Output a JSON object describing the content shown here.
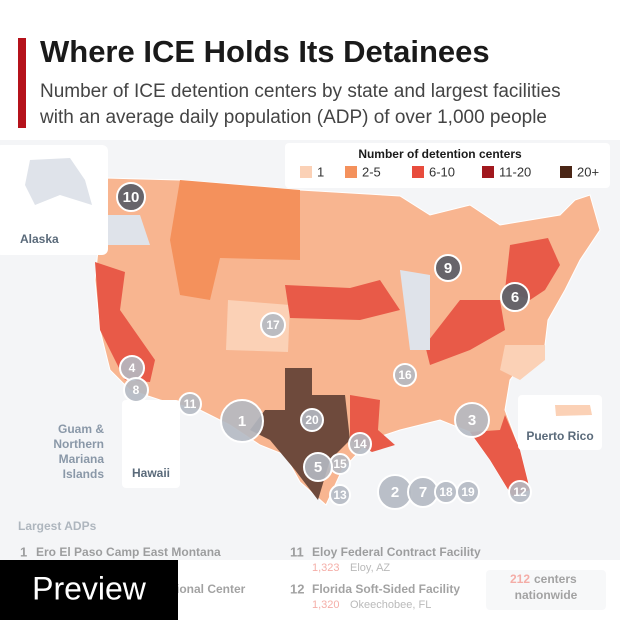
{
  "header": {
    "title": "Where ICE Holds Its Detainees",
    "subtitle_lines": [
      "Number of ICE detention centers by state and largest facilities",
      "with an average daily population (ADP) of over 1,000 people"
    ]
  },
  "legend": {
    "title": "Number of detention centers",
    "items": [
      {
        "label": "1",
        "color": "#fbd1b6"
      },
      {
        "label": "2-5",
        "color": "#f4915c"
      },
      {
        "label": "6-10",
        "color": "#e84c3d"
      },
      {
        "label": "11-20",
        "color": "#a1181e"
      },
      {
        "label": "20+",
        "color": "#4a2616"
      }
    ]
  },
  "insets": {
    "alaska": "Alaska",
    "guam": [
      "Guam &",
      "Northern",
      "Mariana",
      "Islands"
    ],
    "hawaii": "Hawaii",
    "puerto_rico": "Puerto Rico"
  },
  "markers": [
    "10",
    "9",
    "6",
    "17",
    "4",
    "8",
    "11",
    "1",
    "16",
    "20",
    "3",
    "14",
    "15",
    "5",
    "13",
    "2",
    "7",
    "18",
    "19",
    "12"
  ],
  "ranking": {
    "title": "Largest ADPs",
    "items": [
      {
        "rank": "1",
        "name": "Ero El Paso Camp East Montana"
      },
      {
        "rank": "11",
        "name": "Eloy Federal Contract Facility",
        "adp": "1,323",
        "place": "Eloy, AZ"
      },
      {
        "rank": "12",
        "name": "Florida Soft-Sided Facility",
        "adp": "1,320",
        "place": "Okeechobee, FL"
      }
    ],
    "partial": "ional Center"
  },
  "total": {
    "count": "212",
    "line1": "centers",
    "line2": "nationwide"
  },
  "overlay": "Preview"
}
